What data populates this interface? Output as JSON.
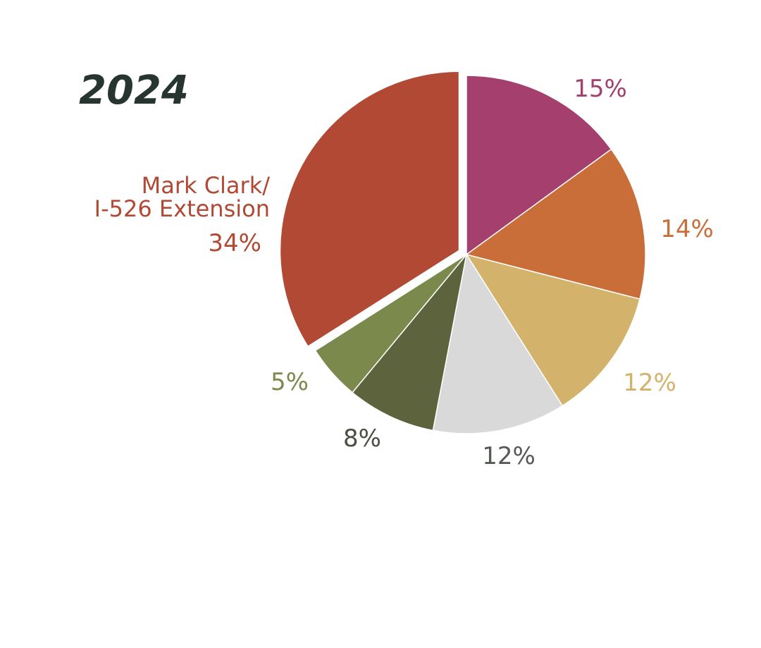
{
  "chart_data": {
    "type": "pie",
    "title": "2024",
    "slices": [
      {
        "label": "",
        "value_label": "15%",
        "value": 15,
        "color": "#a43f6e",
        "label_color": "#a43f6e",
        "exploded": false
      },
      {
        "label": "",
        "value_label": "14%",
        "value": 14,
        "color": "#c96e38",
        "label_color": "#c96e38",
        "exploded": false
      },
      {
        "label": "",
        "value_label": "12%",
        "value": 12,
        "color": "#d3b26b",
        "label_color": "#d3b26b",
        "exploded": false
      },
      {
        "label": "",
        "value_label": "12%",
        "value": 12,
        "color": "#d9d9d9",
        "label_color": "#555a55",
        "exploded": false
      },
      {
        "label": "",
        "value_label": "8%",
        "value": 8,
        "color": "#5c633d",
        "label_color": "#4a4f44",
        "exploded": false
      },
      {
        "label": "",
        "value_label": "5%",
        "value": 5,
        "color": "#7b894c",
        "label_color": "#7b894c",
        "exploded": false
      },
      {
        "label": "Mark Clark/ I-526 Extension",
        "label_lines": [
          "Mark Clark/",
          "I-526 Extension"
        ],
        "value_label": "34%",
        "value": 34,
        "color": "#b14934",
        "label_color": "#b14934",
        "exploded": true
      }
    ]
  }
}
